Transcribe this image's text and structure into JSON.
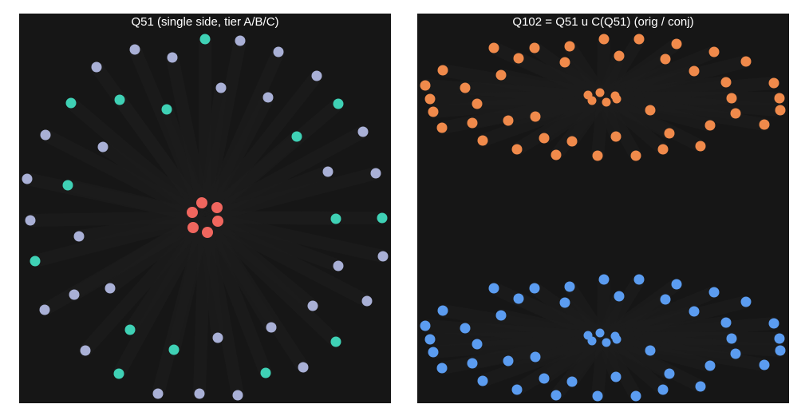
{
  "panels": [
    {
      "title": "Q51  (single side, tier A/B/C)"
    },
    {
      "title": "Q102 = Q51 u C(Q51)  (orig / conj)"
    }
  ]
}
